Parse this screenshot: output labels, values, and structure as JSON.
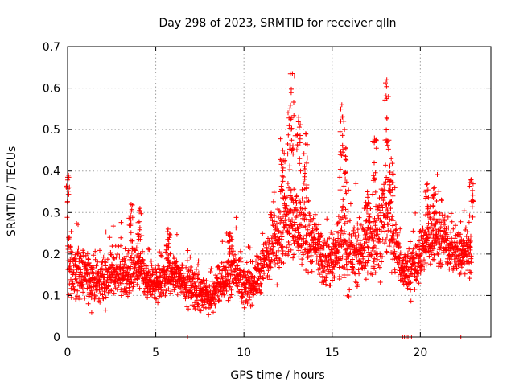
{
  "chart_data": {
    "type": "scatter",
    "title": "Day 298 of 2023, SRMTID for receiver qlln",
    "xlabel": "GPS time / hours",
    "ylabel": "SRMTID / TECUs",
    "xlim": [
      0,
      24
    ],
    "ylim": [
      0,
      0.7
    ],
    "xticks": [
      0,
      5,
      10,
      15,
      20
    ],
    "xtick_labels": [
      "0",
      "5",
      "10",
      "15",
      "20"
    ],
    "yticks": [
      0,
      0.1,
      0.2,
      0.3,
      0.4,
      0.5,
      0.6,
      0.7
    ],
    "ytick_labels": [
      "0",
      "0.1",
      "0.2",
      "0.3",
      "0.4",
      "0.5",
      "0.6",
      "0.7"
    ],
    "grid": true,
    "marker": "+",
    "marker_color": "#ff0000",
    "series": [
      {
        "name": "SRMTID qlln",
        "envelope_x": [
          0,
          0.5,
          1,
          1.5,
          2,
          2.5,
          3,
          3.5,
          4,
          4.5,
          5,
          5.5,
          6,
          6.5,
          7,
          7.5,
          8,
          8.5,
          9,
          9.5,
          10,
          10.5,
          11,
          11.5,
          12,
          12.5,
          13,
          13.5,
          14,
          14.5,
          15,
          15.5,
          16,
          16.5,
          17,
          17.5,
          18,
          18.5,
          19,
          19.5,
          20,
          20.5,
          21,
          21.5,
          22,
          22.5,
          23
        ],
        "envelope_center": [
          0.18,
          0.15,
          0.15,
          0.13,
          0.14,
          0.15,
          0.15,
          0.15,
          0.17,
          0.13,
          0.13,
          0.14,
          0.15,
          0.14,
          0.12,
          0.11,
          0.09,
          0.12,
          0.14,
          0.17,
          0.12,
          0.13,
          0.16,
          0.22,
          0.25,
          0.28,
          0.27,
          0.25,
          0.22,
          0.18,
          0.18,
          0.24,
          0.2,
          0.2,
          0.22,
          0.24,
          0.3,
          0.24,
          0.16,
          0.16,
          0.2,
          0.24,
          0.25,
          0.22,
          0.2,
          0.2,
          0.21
        ],
        "envelope_spread": [
          0.08,
          0.05,
          0.05,
          0.05,
          0.05,
          0.05,
          0.04,
          0.05,
          0.05,
          0.04,
          0.04,
          0.04,
          0.04,
          0.04,
          0.04,
          0.04,
          0.03,
          0.04,
          0.04,
          0.05,
          0.04,
          0.04,
          0.05,
          0.07,
          0.09,
          0.1,
          0.09,
          0.07,
          0.06,
          0.05,
          0.06,
          0.09,
          0.07,
          0.06,
          0.07,
          0.08,
          0.09,
          0.07,
          0.04,
          0.05,
          0.05,
          0.06,
          0.06,
          0.05,
          0.04,
          0.05,
          0.05
        ],
        "peaks": [
          {
            "x": 0.05,
            "y": 0.39
          },
          {
            "x": 3.6,
            "y": 0.32
          },
          {
            "x": 4.1,
            "y": 0.31
          },
          {
            "x": 5.7,
            "y": 0.26
          },
          {
            "x": 9.2,
            "y": 0.25
          },
          {
            "x": 12.2,
            "y": 0.45
          },
          {
            "x": 12.6,
            "y": 0.55
          },
          {
            "x": 12.75,
            "y": 0.635
          },
          {
            "x": 13.1,
            "y": 0.53
          },
          {
            "x": 13.5,
            "y": 0.49
          },
          {
            "x": 15.55,
            "y": 0.56
          },
          {
            "x": 15.7,
            "y": 0.5
          },
          {
            "x": 17.0,
            "y": 0.35
          },
          {
            "x": 17.4,
            "y": 0.48
          },
          {
            "x": 18.1,
            "y": 0.62
          },
          {
            "x": 18.35,
            "y": 0.43
          },
          {
            "x": 20.4,
            "y": 0.37
          },
          {
            "x": 20.8,
            "y": 0.36
          },
          {
            "x": 22.9,
            "y": 0.38
          }
        ],
        "zero_points_x": [
          6.8,
          19.0,
          19.1,
          19.2,
          19.3,
          19.5,
          22.3
        ],
        "end_x": 22.9
      }
    ]
  }
}
